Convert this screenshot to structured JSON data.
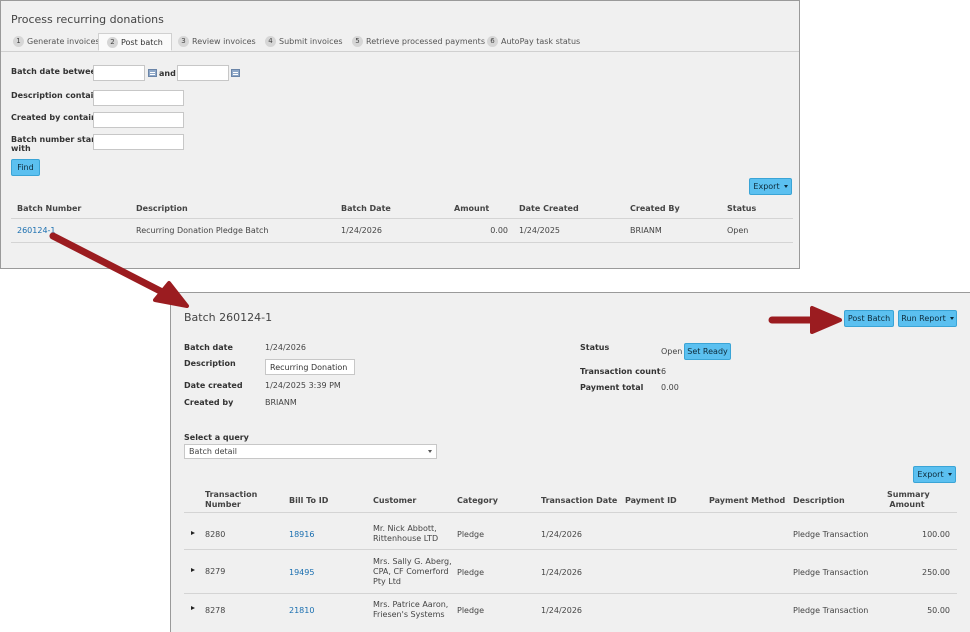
{
  "process": {
    "title": "Process recurring donations",
    "tabs": [
      {
        "num": "1",
        "label": "Generate invoices"
      },
      {
        "num": "2",
        "label": "Post batch"
      },
      {
        "num": "3",
        "label": "Review invoices"
      },
      {
        "num": "4",
        "label": "Submit invoices"
      },
      {
        "num": "5",
        "label": "Retrieve processed payments"
      },
      {
        "num": "6",
        "label": "AutoPay task status"
      }
    ],
    "filters": {
      "batch_date_label": "Batch date between",
      "and_label": "and",
      "description_label": "Description contains",
      "created_by_label": "Created by contains",
      "batch_number_label_1": "Batch number starts",
      "batch_number_label_2": "with"
    },
    "find_label": "Find",
    "export_label": "Export",
    "columns": [
      "Batch Number",
      "Description",
      "Batch Date",
      "Amount",
      "Date Created",
      "Created By",
      "Status"
    ],
    "row": {
      "batch_number": "260124-1",
      "description": "Recurring Donation Pledge Batch",
      "batch_date": "1/24/2026",
      "amount": "0.00",
      "date_created": "1/24/2025",
      "created_by": "BRIANM",
      "status": "Open"
    }
  },
  "batch": {
    "title": "Batch 260124-1",
    "post_batch_label": "Post Batch",
    "run_report_label": "Run Report",
    "details": {
      "batch_date_label": "Batch date",
      "batch_date": "1/24/2026",
      "description_label": "Description",
      "description_value": "Recurring Donation Ple",
      "date_created_label": "Date created",
      "date_created": "1/24/2025 3:39 PM",
      "created_by_label": "Created by",
      "created_by": "BRIANM",
      "status_label": "Status",
      "status": "Open",
      "set_ready_label": "Set Ready",
      "transaction_count_label": "Transaction count",
      "transaction_count": "6",
      "payment_total_label": "Payment total",
      "payment_total": "0.00"
    },
    "query_label": "Select a query",
    "query_value": "Batch detail",
    "export_label": "Export",
    "columns": {
      "txn_1": "Transaction",
      "txn_2": "Number",
      "bill_to": "Bill To ID",
      "customer": "Customer",
      "category": "Category",
      "txn_date": "Transaction Date",
      "payment_id": "Payment ID",
      "payment_method": "Payment Method",
      "description": "Description",
      "summary_1": "Summary",
      "summary_2": "Amount"
    },
    "rows": [
      {
        "txn": "8280",
        "bill_to": "18916",
        "customer_1": "Mr. Nick Abbott,",
        "customer_2": "Rittenhouse LTD",
        "customer_3": "",
        "category": "Pledge",
        "date": "1/24/2026",
        "description": "Pledge Transaction",
        "amount": "100.00"
      },
      {
        "txn": "8279",
        "bill_to": "19495",
        "customer_1": "Mrs. Sally G. Aberg,",
        "customer_2": "CPA, CF Comerford",
        "customer_3": "Pty Ltd",
        "category": "Pledge",
        "date": "1/24/2026",
        "description": "Pledge Transaction",
        "amount": "250.00"
      },
      {
        "txn": "8278",
        "bill_to": "21810",
        "customer_1": "Mrs. Patrice Aaron,",
        "customer_2": "Friesen's Systems",
        "customer_3": "",
        "category": "Pledge",
        "date": "1/24/2026",
        "description": "Pledge Transaction",
        "amount": "50.00"
      }
    ]
  },
  "colors": {
    "accent_button": "#5bc0f0",
    "link": "#1a6fb0",
    "arrow": "#9b1c20",
    "panel_bg": "#f0f0f0"
  }
}
